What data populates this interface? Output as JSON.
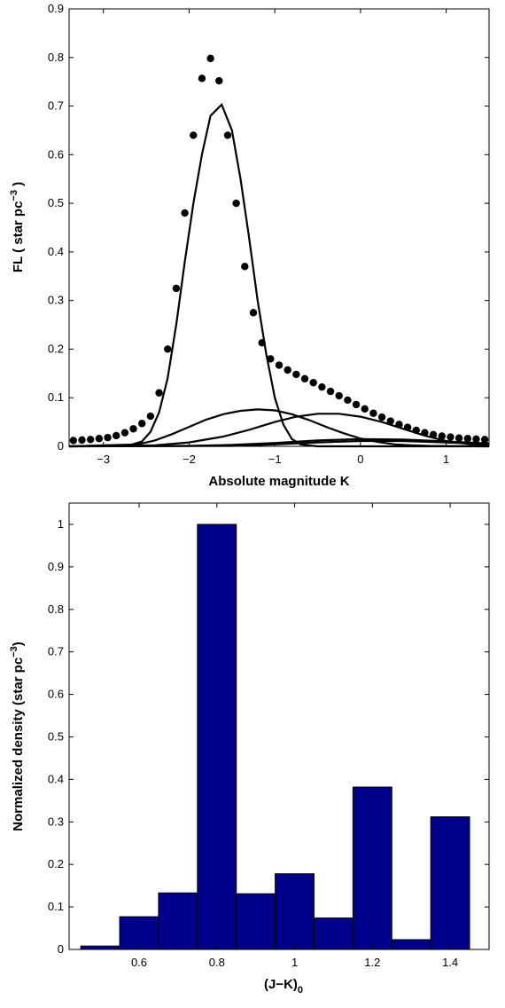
{
  "chart_data": [
    {
      "type": "line",
      "xlabel": "Absolute magnitude K",
      "ylabel_main": "FL ( star pc",
      "ylabel_sup": "−3",
      "ylabel_tail": " )",
      "xlim": [
        -3.4,
        1.5
      ],
      "ylim": [
        0,
        0.9
      ],
      "xticks": [
        -3,
        -2,
        -1,
        0,
        1
      ],
      "xtick_labels": [
        "−3",
        "−2",
        "−1",
        "0",
        "1"
      ],
      "yticks": [
        0,
        0.1,
        0.2,
        0.3,
        0.4,
        0.5,
        0.6,
        0.7,
        0.8,
        0.9
      ],
      "ytick_labels": [
        "0",
        "0.1",
        "0.2",
        "0.3",
        "0.4",
        "0.5",
        "0.6",
        "0.7",
        "0.8",
        "0.9"
      ],
      "grid": false,
      "series": [
        {
          "style": "dots",
          "points": [
            [
              -3.35,
              0.012
            ],
            [
              -3.25,
              0.013
            ],
            [
              -3.15,
              0.014
            ],
            [
              -3.05,
              0.016
            ],
            [
              -2.95,
              0.018
            ],
            [
              -2.85,
              0.022
            ],
            [
              -2.75,
              0.028
            ],
            [
              -2.65,
              0.036
            ],
            [
              -2.55,
              0.047
            ],
            [
              -2.45,
              0.062
            ],
            [
              -2.35,
              0.11
            ],
            [
              -2.25,
              0.2
            ],
            [
              -2.15,
              0.325
            ],
            [
              -2.05,
              0.48
            ],
            [
              -1.95,
              0.64
            ],
            [
              -1.85,
              0.757
            ],
            [
              -1.75,
              0.798
            ],
            [
              -1.65,
              0.752
            ],
            [
              -1.55,
              0.64
            ],
            [
              -1.45,
              0.5
            ],
            [
              -1.35,
              0.37
            ],
            [
              -1.25,
              0.275
            ],
            [
              -1.15,
              0.213
            ],
            [
              -1.05,
              0.18
            ],
            [
              -0.95,
              0.167
            ],
            [
              -0.85,
              0.157
            ],
            [
              -0.75,
              0.148
            ],
            [
              -0.65,
              0.139
            ],
            [
              -0.55,
              0.131
            ],
            [
              -0.45,
              0.122
            ],
            [
              -0.35,
              0.113
            ],
            [
              -0.25,
              0.104
            ],
            [
              -0.15,
              0.095
            ],
            [
              -0.05,
              0.086
            ],
            [
              0.05,
              0.077
            ],
            [
              0.15,
              0.068
            ],
            [
              0.25,
              0.06
            ],
            [
              0.35,
              0.052
            ],
            [
              0.45,
              0.045
            ],
            [
              0.55,
              0.039
            ],
            [
              0.65,
              0.033
            ],
            [
              0.75,
              0.028
            ],
            [
              0.85,
              0.024
            ],
            [
              0.95,
              0.021
            ],
            [
              1.05,
              0.019
            ],
            [
              1.15,
              0.017
            ],
            [
              1.25,
              0.016
            ],
            [
              1.35,
              0.015
            ],
            [
              1.45,
              0.014
            ]
          ]
        },
        {
          "style": "line",
          "points": [
            [
              -3.4,
              0.0
            ],
            [
              -2.7,
              0.002
            ],
            [
              -2.55,
              0.01
            ],
            [
              -2.45,
              0.03
            ],
            [
              -2.35,
              0.07
            ],
            [
              -2.25,
              0.14
            ],
            [
              -2.15,
              0.25
            ],
            [
              -2.05,
              0.38
            ],
            [
              -1.95,
              0.5
            ],
            [
              -1.85,
              0.6
            ],
            [
              -1.75,
              0.68
            ],
            [
              -1.62,
              0.703
            ],
            [
              -1.5,
              0.65
            ],
            [
              -1.4,
              0.55
            ],
            [
              -1.3,
              0.43
            ],
            [
              -1.2,
              0.3
            ],
            [
              -1.1,
              0.19
            ],
            [
              -1.0,
              0.1
            ],
            [
              -0.9,
              0.045
            ],
            [
              -0.8,
              0.015
            ],
            [
              -0.7,
              0.004
            ],
            [
              -0.5,
              0.0
            ],
            [
              1.5,
              0.0
            ]
          ]
        },
        {
          "style": "line",
          "points": [
            [
              -3.4,
              0.0
            ],
            [
              -2.6,
              0.004
            ],
            [
              -2.4,
              0.012
            ],
            [
              -2.2,
              0.025
            ],
            [
              -2.0,
              0.04
            ],
            [
              -1.8,
              0.055
            ],
            [
              -1.6,
              0.066
            ],
            [
              -1.4,
              0.073
            ],
            [
              -1.2,
              0.076
            ],
            [
              -1.0,
              0.074
            ],
            [
              -0.8,
              0.066
            ],
            [
              -0.6,
              0.054
            ],
            [
              -0.4,
              0.04
            ],
            [
              -0.2,
              0.027
            ],
            [
              0.0,
              0.016
            ],
            [
              0.2,
              0.009
            ],
            [
              0.4,
              0.004
            ],
            [
              0.6,
              0.002
            ],
            [
              0.8,
              0.001
            ],
            [
              1.5,
              0.0
            ]
          ]
        },
        {
          "style": "line",
          "points": [
            [
              -3.4,
              0.0
            ],
            [
              -2.4,
              0.002
            ],
            [
              -2.0,
              0.008
            ],
            [
              -1.6,
              0.02
            ],
            [
              -1.3,
              0.034
            ],
            [
              -1.0,
              0.05
            ],
            [
              -0.75,
              0.061
            ],
            [
              -0.5,
              0.067
            ],
            [
              -0.25,
              0.067
            ],
            [
              0.0,
              0.061
            ],
            [
              0.25,
              0.05
            ],
            [
              0.5,
              0.036
            ],
            [
              0.75,
              0.022
            ],
            [
              1.0,
              0.011
            ],
            [
              1.25,
              0.005
            ],
            [
              1.5,
              0.002
            ]
          ]
        },
        {
          "style": "line",
          "points": [
            [
              -3.4,
              0.0
            ],
            [
              -2.0,
              0.001
            ],
            [
              -1.5,
              0.003
            ],
            [
              -1.0,
              0.007
            ],
            [
              -0.5,
              0.012
            ],
            [
              0.0,
              0.015
            ],
            [
              0.5,
              0.014
            ],
            [
              1.0,
              0.01
            ],
            [
              1.5,
              0.006
            ]
          ]
        },
        {
          "style": "line",
          "points": [
            [
              -3.4,
              0.0
            ],
            [
              -1.5,
              0.001
            ],
            [
              -1.0,
              0.004
            ],
            [
              -0.5,
              0.008
            ],
            [
              0.0,
              0.011
            ],
            [
              0.5,
              0.011
            ],
            [
              1.0,
              0.008
            ],
            [
              1.5,
              0.004
            ]
          ]
        }
      ]
    },
    {
      "type": "bar",
      "xlabel_main": "(J−K)",
      "xlabel_sub": "0",
      "ylabel_main": "Normalized density (star pc",
      "ylabel_sup": "−3",
      "ylabel_tail": ")",
      "xlim": [
        0.42,
        1.5
      ],
      "ylim": [
        0,
        1.05
      ],
      "xticks": [
        0.6,
        0.8,
        1.0,
        1.2,
        1.4
      ],
      "xtick_labels": [
        "0.6",
        "0.8",
        "1",
        "1.2",
        "1.4"
      ],
      "yticks": [
        0,
        0.1,
        0.2,
        0.3,
        0.4,
        0.5,
        0.6,
        0.7,
        0.8,
        0.9,
        1.0
      ],
      "ytick_labels": [
        "0",
        "0.1",
        "0.2",
        "0.3",
        "0.4",
        "0.5",
        "0.6",
        "0.7",
        "0.8",
        "0.9",
        "1"
      ],
      "bar_width": 0.1,
      "bar_color": "#00008b",
      "grid": false,
      "x": [
        0.5,
        0.6,
        0.7,
        0.8,
        0.9,
        1.0,
        1.1,
        1.2,
        1.3,
        1.4
      ],
      "values": [
        0.008,
        0.077,
        0.133,
        1.0,
        0.131,
        0.178,
        0.074,
        0.382,
        0.023,
        0.312
      ]
    }
  ]
}
